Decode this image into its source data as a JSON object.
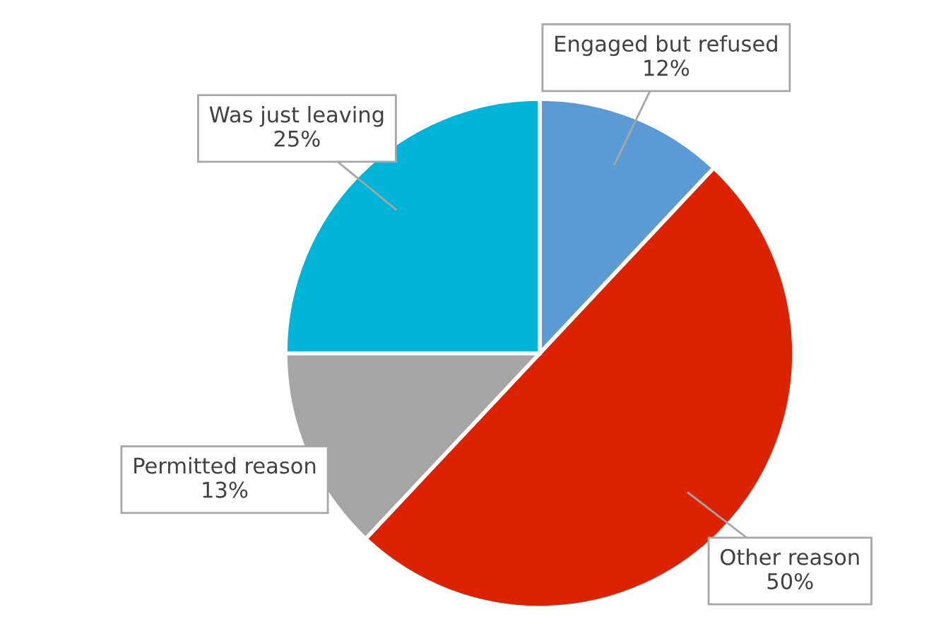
{
  "chart_data": {
    "type": "pie",
    "categories": [
      "Engaged but refused",
      "Other reason",
      "Permitted reason",
      "Was just leaving"
    ],
    "values": [
      12,
      50,
      13,
      25
    ],
    "value_labels": [
      "12%",
      "50%",
      "13%",
      "25%"
    ],
    "colors": [
      "#5b9bd5",
      "#dd2200",
      "#a5a5a5",
      "#00b5d8"
    ]
  }
}
